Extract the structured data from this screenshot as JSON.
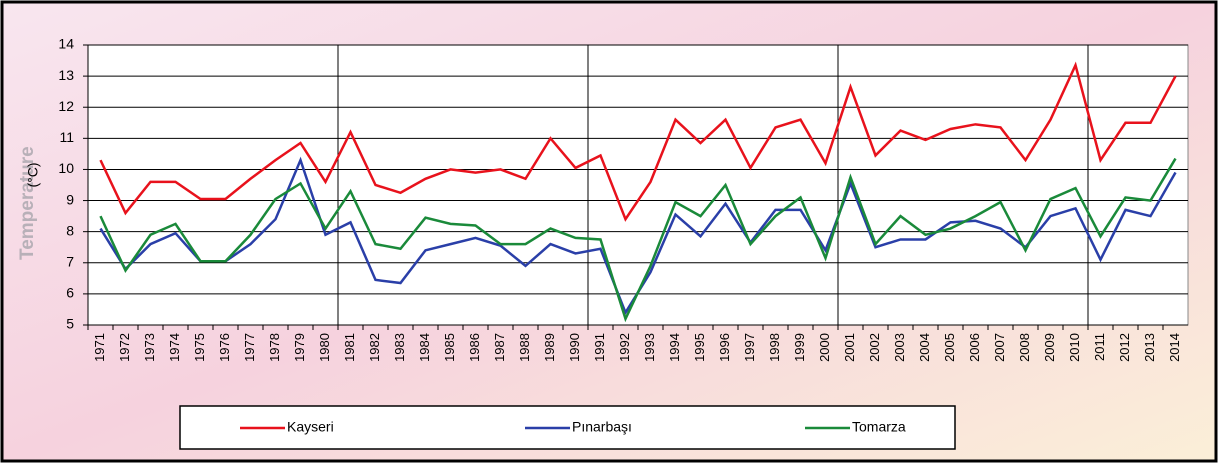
{
  "chart_data": {
    "type": "line",
    "ylabel": "Temperature",
    "yunit": "(°C)",
    "categories": [
      "1971",
      "1972",
      "1973",
      "1974",
      "1975",
      "1976",
      "1977",
      "1978",
      "1979",
      "1980",
      "1981",
      "1982",
      "1983",
      "1984",
      "1985",
      "1986",
      "1987",
      "1988",
      "1989",
      "1990",
      "1991",
      "1992",
      "1993",
      "1994",
      "1995",
      "1996",
      "1997",
      "1998",
      "1999",
      "2000",
      "2001",
      "2002",
      "2003",
      "2004",
      "2005",
      "2006",
      "2007",
      "2008",
      "2009",
      "2010",
      "2011",
      "2012",
      "2013",
      "2014"
    ],
    "series": [
      {
        "name": "Kayseri",
        "color": "#e8121c",
        "values": [
          10.3,
          8.6,
          9.6,
          9.6,
          9.05,
          9.05,
          9.7,
          10.3,
          10.85,
          9.6,
          11.2,
          9.5,
          9.25,
          9.7,
          10.0,
          9.9,
          10.0,
          9.7,
          11.0,
          10.05,
          10.45,
          8.4,
          9.6,
          11.6,
          10.85,
          11.6,
          10.05,
          11.35,
          11.6,
          10.2,
          12.65,
          10.45,
          11.25,
          10.95,
          11.3,
          11.45,
          11.35,
          10.3,
          11.6,
          13.35,
          10.3,
          11.5,
          11.5,
          13.0
        ]
      },
      {
        "name": "Pınarbaşı",
        "color": "#2a3fa8",
        "values": [
          8.1,
          6.8,
          7.6,
          7.95,
          7.05,
          7.05,
          7.6,
          8.4,
          10.3,
          7.9,
          8.3,
          6.45,
          6.35,
          7.4,
          7.6,
          7.8,
          7.55,
          6.9,
          7.6,
          7.3,
          7.45,
          5.4,
          6.7,
          8.55,
          7.85,
          8.9,
          7.65,
          8.7,
          8.7,
          7.4,
          9.55,
          7.5,
          7.75,
          7.75,
          8.3,
          8.35,
          8.1,
          7.5,
          8.5,
          8.75,
          7.1,
          8.7,
          8.5,
          9.9
        ]
      },
      {
        "name": "Tomarza",
        "color": "#1a8a3a",
        "values": [
          8.5,
          6.75,
          7.9,
          8.25,
          7.05,
          7.05,
          7.9,
          9.05,
          9.55,
          8.1,
          9.3,
          7.6,
          7.45,
          8.45,
          8.25,
          8.2,
          7.6,
          7.6,
          8.1,
          7.8,
          7.75,
          5.2,
          6.9,
          8.95,
          8.5,
          9.5,
          7.6,
          8.5,
          9.1,
          7.15,
          9.75,
          7.6,
          8.5,
          7.9,
          8.1,
          8.5,
          8.95,
          7.4,
          9.05,
          9.4,
          7.85,
          9.1,
          9.0,
          10.35
        ]
      }
    ],
    "ylim": [
      5,
      14
    ],
    "yticks": [
      5,
      6,
      7,
      8,
      9,
      10,
      11,
      12,
      13,
      14
    ],
    "grid": true
  }
}
